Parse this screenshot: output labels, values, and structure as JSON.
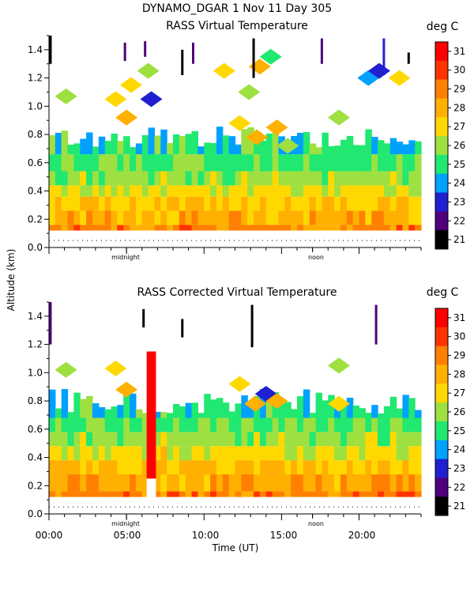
{
  "header": {
    "title": "DYNAMO_DGAR    1 Nov 11 Day 305"
  },
  "shared": {
    "ylabel": "Altitude (km)",
    "xlabel": "Time (UT)",
    "x_tick_labels": [
      "00:00",
      "05:00",
      "10:00",
      "15:00",
      "20:00"
    ],
    "midnight_label": "midnight",
    "noon_label": "noon"
  },
  "colorbar": {
    "unit": "deg C",
    "values": [
      31,
      30,
      29,
      28,
      27,
      26,
      25,
      24,
      23,
      22,
      21
    ],
    "colors": [
      "#ff0000",
      "#ff3300",
      "#ff8000",
      "#ffb000",
      "#ffd800",
      "#9de040",
      "#20e870",
      "#00a0ff",
      "#2020d0",
      "#50007a",
      "#000000"
    ]
  },
  "chart_data": [
    {
      "type": "heatmap",
      "title": "RASS Virtual Temperature",
      "ylabel": "Altitude (km)",
      "xlabel": "Time (UT)",
      "xlim": [
        0,
        24
      ],
      "ylim": [
        0.0,
        1.5
      ],
      "y_ticks": [
        0.0,
        0.2,
        0.4,
        0.6,
        0.8,
        1.0,
        1.2,
        1.4
      ],
      "y_tick_labels": [
        "0.0",
        "0.2",
        "0.4",
        "0.6",
        "0.8",
        "1.0",
        "1.2",
        "1.4"
      ],
      "colorbar_unit": "deg C",
      "cbar_min": 21,
      "cbar_max": 31,
      "layers": [
        {
          "alt": [
            0.12,
            0.16
          ],
          "t": 29.3
        },
        {
          "alt": [
            0.16,
            0.26
          ],
          "t": 28.6
        },
        {
          "alt": [
            0.26,
            0.36
          ],
          "t": 28.0
        },
        {
          "alt": [
            0.36,
            0.44
          ],
          "t": 27.2
        },
        {
          "alt": [
            0.44,
            0.54
          ],
          "t": 26.4
        },
        {
          "alt": [
            0.54,
            0.66
          ],
          "t": 25.8
        },
        {
          "alt": [
            0.66,
            0.76
          ],
          "t": 25.4
        }
      ],
      "upper_cells": [
        {
          "time": 1.1,
          "alt": 1.07,
          "t": 26.2
        },
        {
          "time": 4.3,
          "alt": 1.05,
          "t": 27.8
        },
        {
          "time": 5.0,
          "alt": 0.92,
          "t": 28.8
        },
        {
          "time": 5.3,
          "alt": 1.15,
          "t": 27.5
        },
        {
          "time": 6.6,
          "alt": 1.05,
          "t": 23.5
        },
        {
          "time": 6.4,
          "alt": 1.25,
          "t": 26.0
        },
        {
          "time": 11.3,
          "alt": 1.25,
          "t": 27.0
        },
        {
          "time": 12.3,
          "alt": 0.88,
          "t": 27.8
        },
        {
          "time": 12.9,
          "alt": 1.1,
          "t": 26.5
        },
        {
          "time": 13.4,
          "alt": 0.78,
          "t": 28.3
        },
        {
          "time": 13.6,
          "alt": 1.28,
          "t": 28.6
        },
        {
          "time": 14.3,
          "alt": 1.35,
          "t": 25.5
        },
        {
          "time": 14.7,
          "alt": 0.85,
          "t": 28.3
        },
        {
          "time": 15.4,
          "alt": 0.72,
          "t": 26.5
        },
        {
          "time": 18.7,
          "alt": 0.92,
          "t": 26.0
        },
        {
          "time": 20.6,
          "alt": 1.2,
          "t": 24.5
        },
        {
          "time": 21.3,
          "alt": 1.25,
          "t": 23.0
        },
        {
          "time": 22.6,
          "alt": 1.2,
          "t": 27.0
        }
      ],
      "spikes": [
        {
          "time": 0.1,
          "alt": [
            1.3,
            1.5
          ],
          "t": 21.5
        },
        {
          "time": 4.9,
          "alt": [
            1.32,
            1.45
          ],
          "t": 22.5
        },
        {
          "time": 6.2,
          "alt": [
            1.35,
            1.46
          ],
          "t": 22.5
        },
        {
          "time": 8.6,
          "alt": [
            1.22,
            1.4
          ],
          "t": 21.5
        },
        {
          "time": 9.3,
          "alt": [
            1.3,
            1.45
          ],
          "t": 22.5
        },
        {
          "time": 13.2,
          "alt": [
            1.2,
            1.48
          ],
          "t": 21.5
        },
        {
          "time": 17.6,
          "alt": [
            1.3,
            1.48
          ],
          "t": 22.5
        },
        {
          "time": 21.6,
          "alt": [
            1.22,
            1.48
          ],
          "t": 23.5
        },
        {
          "time": 23.2,
          "alt": [
            1.3,
            1.38
          ],
          "t": 21.5
        }
      ]
    },
    {
      "type": "heatmap",
      "title": "RASS Corrected Virtual Temperature",
      "ylabel": "Altitude (km)",
      "xlabel": "Time (UT)",
      "xlim": [
        0,
        24
      ],
      "ylim": [
        0.0,
        1.5
      ],
      "y_ticks": [
        0.0,
        0.2,
        0.4,
        0.6,
        0.8,
        1.0,
        1.2,
        1.4
      ],
      "y_tick_labels": [
        "0.0",
        "0.2",
        "0.4",
        "0.6",
        "0.8",
        "1.0",
        "1.2",
        "1.4"
      ],
      "colorbar_unit": "deg C",
      "cbar_min": 21,
      "cbar_max": 31,
      "layers": [
        {
          "alt": [
            0.12,
            0.16
          ],
          "t": 29.4
        },
        {
          "alt": [
            0.16,
            0.28
          ],
          "t": 28.7
        },
        {
          "alt": [
            0.28,
            0.38
          ],
          "t": 28.1
        },
        {
          "alt": [
            0.38,
            0.48
          ],
          "t": 27.3
        },
        {
          "alt": [
            0.48,
            0.58
          ],
          "t": 26.6
        },
        {
          "alt": [
            0.58,
            0.68
          ],
          "t": 25.8
        },
        {
          "alt": [
            0.68,
            0.76
          ],
          "t": 25.3
        }
      ],
      "hot_column": {
        "time": [
          6.3,
          6.9
        ],
        "alt": [
          0.25,
          1.15
        ],
        "t": 31.0
      },
      "upper_cells": [
        {
          "time": 1.1,
          "alt": 1.02,
          "t": 26.0
        },
        {
          "time": 4.3,
          "alt": 1.03,
          "t": 27.8
        },
        {
          "time": 5.0,
          "alt": 0.88,
          "t": 28.6
        },
        {
          "time": 12.3,
          "alt": 0.92,
          "t": 27.8
        },
        {
          "time": 13.3,
          "alt": 0.78,
          "t": 28.3
        },
        {
          "time": 14.0,
          "alt": 0.85,
          "t": 23.0
        },
        {
          "time": 14.7,
          "alt": 0.8,
          "t": 28.4
        },
        {
          "time": 18.7,
          "alt": 1.05,
          "t": 26.0
        },
        {
          "time": 18.7,
          "alt": 0.78,
          "t": 27.8
        }
      ],
      "spikes": [
        {
          "time": 0.1,
          "alt": [
            1.2,
            1.5
          ],
          "t": 22.5
        },
        {
          "time": 6.1,
          "alt": [
            1.32,
            1.45
          ],
          "t": 21.5
        },
        {
          "time": 8.6,
          "alt": [
            1.25,
            1.38
          ],
          "t": 21.5
        },
        {
          "time": 13.1,
          "alt": [
            1.18,
            1.48
          ],
          "t": 21.5
        },
        {
          "time": 21.1,
          "alt": [
            1.2,
            1.48
          ],
          "t": 22.5
        }
      ]
    }
  ]
}
